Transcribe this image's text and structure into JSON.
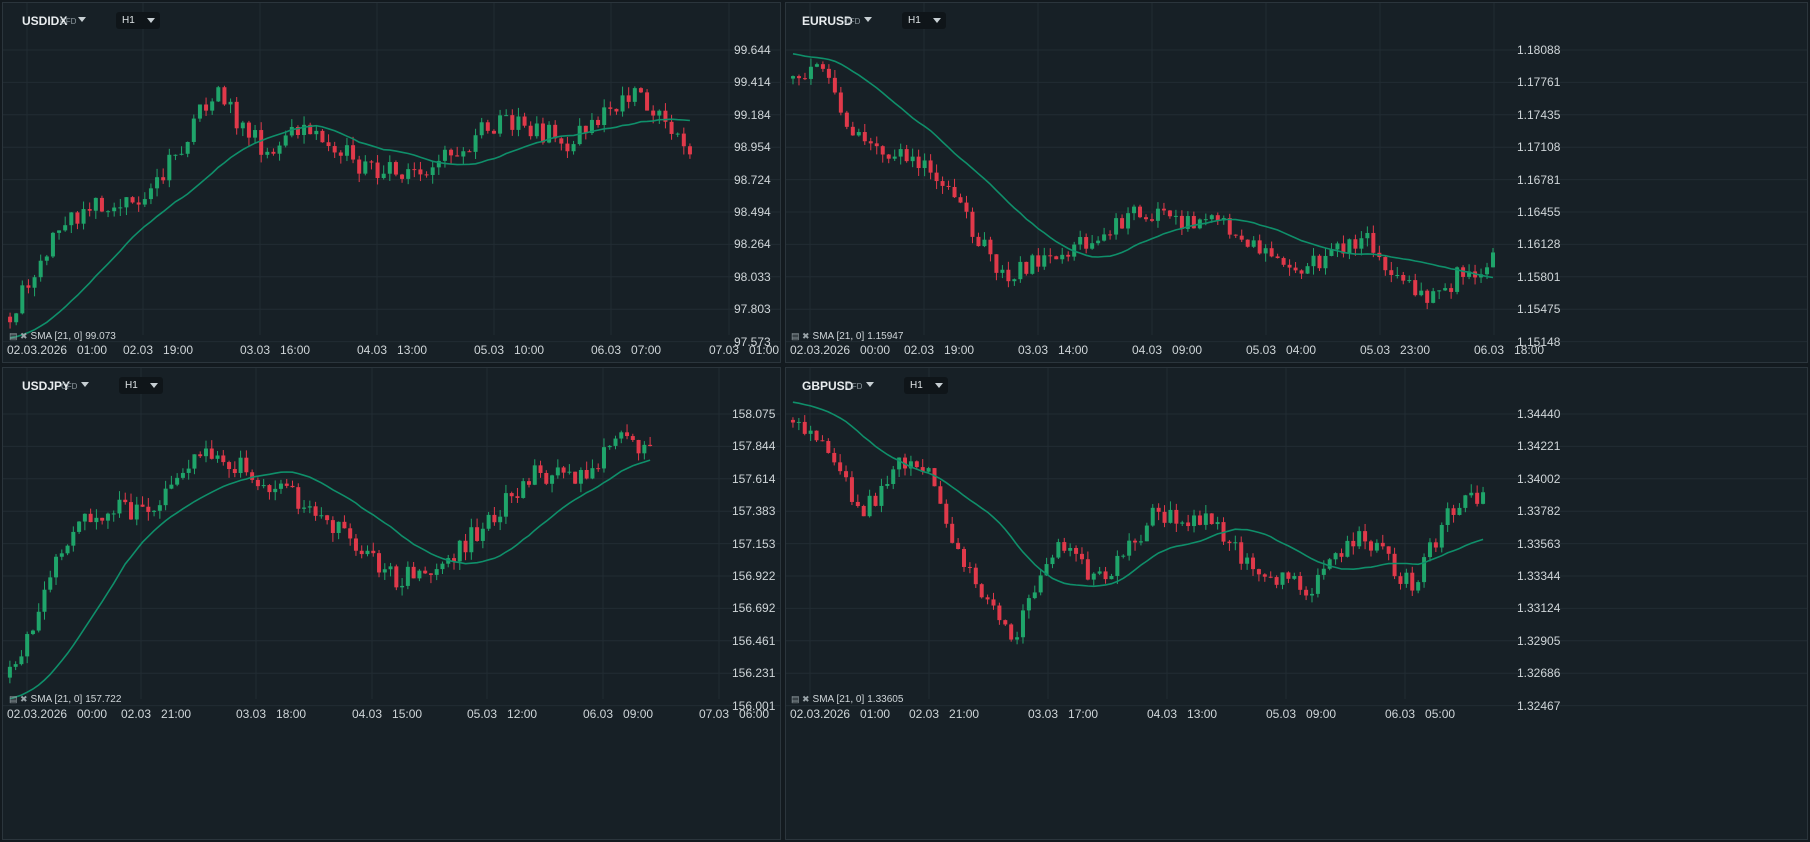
{
  "colors": {
    "background": "#172026",
    "up": "#1fa46a",
    "down": "#e0394a",
    "sma": "#0f8f6a",
    "grid": "#222c33",
    "text": "#cfd5d8"
  },
  "panels": [
    {
      "symbol": "USDIDX",
      "badge": "CFD",
      "timeframe": "H1",
      "indicator": "SMA [21, 0]",
      "indicator_value": "99.073",
      "price_ticks": [
        "99.644",
        "99.414",
        "99.184",
        "98.954",
        "98.724",
        "98.494",
        "98.264",
        "98.033",
        "97.803",
        "97.573"
      ],
      "time_ticks": [
        "02.03.2026   01:00",
        "02.03   19:00",
        "03.03   16:00",
        "04.03   13:00",
        "05.03   10:00",
        "06.03   07:00",
        "07.03   01:00"
      ],
      "series": {
        "start": 97.75,
        "end": 98.95,
        "min": 97.6,
        "max": 99.58,
        "n": 112,
        "smaStart": 97.6,
        "smaEnd": 99.1,
        "path": [
          [
            0,
            97.75
          ],
          [
            0.07,
            98.35
          ],
          [
            0.13,
            98.55
          ],
          [
            0.2,
            98.55
          ],
          [
            0.3,
            99.35
          ],
          [
            0.37,
            98.95
          ],
          [
            0.45,
            99.1
          ],
          [
            0.52,
            98.8
          ],
          [
            0.62,
            98.8
          ],
          [
            0.72,
            99.15
          ],
          [
            0.82,
            99.0
          ],
          [
            0.92,
            99.35
          ],
          [
            1.0,
            98.95
          ]
        ]
      }
    },
    {
      "symbol": "EURUSD",
      "badge": "CFD",
      "timeframe": "H1",
      "indicator": "SMA [21, 0]",
      "indicator_value": "1.15947",
      "price_ticks": [
        "1.18088",
        "1.17761",
        "1.17435",
        "1.17108",
        "1.16781",
        "1.16455",
        "1.16128",
        "1.15801",
        "1.15475",
        "1.15148"
      ],
      "time_ticks": [
        "02.03.2026   00:00",
        "02.03   19:00",
        "03.03   14:00",
        "04.03   09:00",
        "05.03   04:00",
        "05.03   23:00",
        "06.03   18:00"
      ],
      "series": {
        "start": 1.178,
        "end": 1.1595,
        "min": 1.153,
        "max": 1.18,
        "n": 118,
        "smaStart": 1.1805,
        "smaEnd": 1.1595,
        "path": [
          [
            0,
            1.178
          ],
          [
            0.03,
            1.1795
          ],
          [
            0.1,
            1.1715
          ],
          [
            0.2,
            1.169
          ],
          [
            0.3,
            1.158
          ],
          [
            0.4,
            1.161
          ],
          [
            0.5,
            1.1645
          ],
          [
            0.62,
            1.163
          ],
          [
            0.72,
            1.159
          ],
          [
            0.82,
            1.1615
          ],
          [
            0.9,
            1.1555
          ],
          [
            0.96,
            1.1585
          ],
          [
            1.0,
            1.1595
          ]
        ]
      }
    },
    {
      "symbol": "USDJPY",
      "badge": "CFD",
      "timeframe": "H1",
      "indicator": "SMA [21, 0]",
      "indicator_value": "157.722",
      "price_ticks": [
        "158.075",
        "157.844",
        "157.614",
        "157.383",
        "157.153",
        "156.922",
        "156.692",
        "156.461",
        "156.231",
        "156.001"
      ],
      "time_ticks": [
        "02.03.2026   00:00",
        "02.03   21:00",
        "03.03   18:00",
        "04.03   15:00",
        "05.03   12:00",
        "06.03   09:00",
        "07.03   06:00"
      ],
      "series": {
        "start": 156.2,
        "end": 157.8,
        "min": 156.05,
        "max": 158.05,
        "n": 112,
        "smaStart": 156.05,
        "smaEnd": 157.7,
        "path": [
          [
            0,
            156.2
          ],
          [
            0.1,
            157.3
          ],
          [
            0.17,
            157.4
          ],
          [
            0.23,
            157.4
          ],
          [
            0.3,
            157.85
          ],
          [
            0.42,
            157.55
          ],
          [
            0.5,
            157.3
          ],
          [
            0.6,
            156.9
          ],
          [
            0.68,
            157.0
          ],
          [
            0.75,
            157.35
          ],
          [
            0.82,
            157.65
          ],
          [
            0.9,
            157.6
          ],
          [
            0.95,
            157.9
          ],
          [
            1.0,
            157.8
          ]
        ]
      }
    },
    {
      "symbol": "GBPUSD",
      "badge": "CFD",
      "timeframe": "H1",
      "indicator": "SMA [21, 0]",
      "indicator_value": "1.33605",
      "price_ticks": [
        "1.34440",
        "1.34221",
        "1.34002",
        "1.33782",
        "1.33563",
        "1.33344",
        "1.33124",
        "1.32905",
        "1.32686",
        "1.32467"
      ],
      "time_ticks": [
        "02.03.2026   01:00",
        "02.03   21:00",
        "03.03   17:00",
        "04.03   13:00",
        "05.03   09:00",
        "06.03   05:00"
      ],
      "series": {
        "start": 1.344,
        "end": 1.339,
        "min": 1.3265,
        "max": 1.345,
        "n": 118,
        "smaStart": 1.3452,
        "smaEnd": 1.336,
        "path": [
          [
            0,
            1.344
          ],
          [
            0.05,
            1.342
          ],
          [
            0.1,
            1.3375
          ],
          [
            0.15,
            1.341
          ],
          [
            0.2,
            1.34
          ],
          [
            0.25,
            1.334
          ],
          [
            0.32,
            1.329
          ],
          [
            0.38,
            1.3355
          ],
          [
            0.45,
            1.333
          ],
          [
            0.52,
            1.3375
          ],
          [
            0.6,
            1.3375
          ],
          [
            0.67,
            1.3335
          ],
          [
            0.75,
            1.3325
          ],
          [
            0.82,
            1.3365
          ],
          [
            0.9,
            1.3325
          ],
          [
            0.95,
            1.338
          ],
          [
            1.0,
            1.339
          ]
        ]
      }
    }
  ]
}
